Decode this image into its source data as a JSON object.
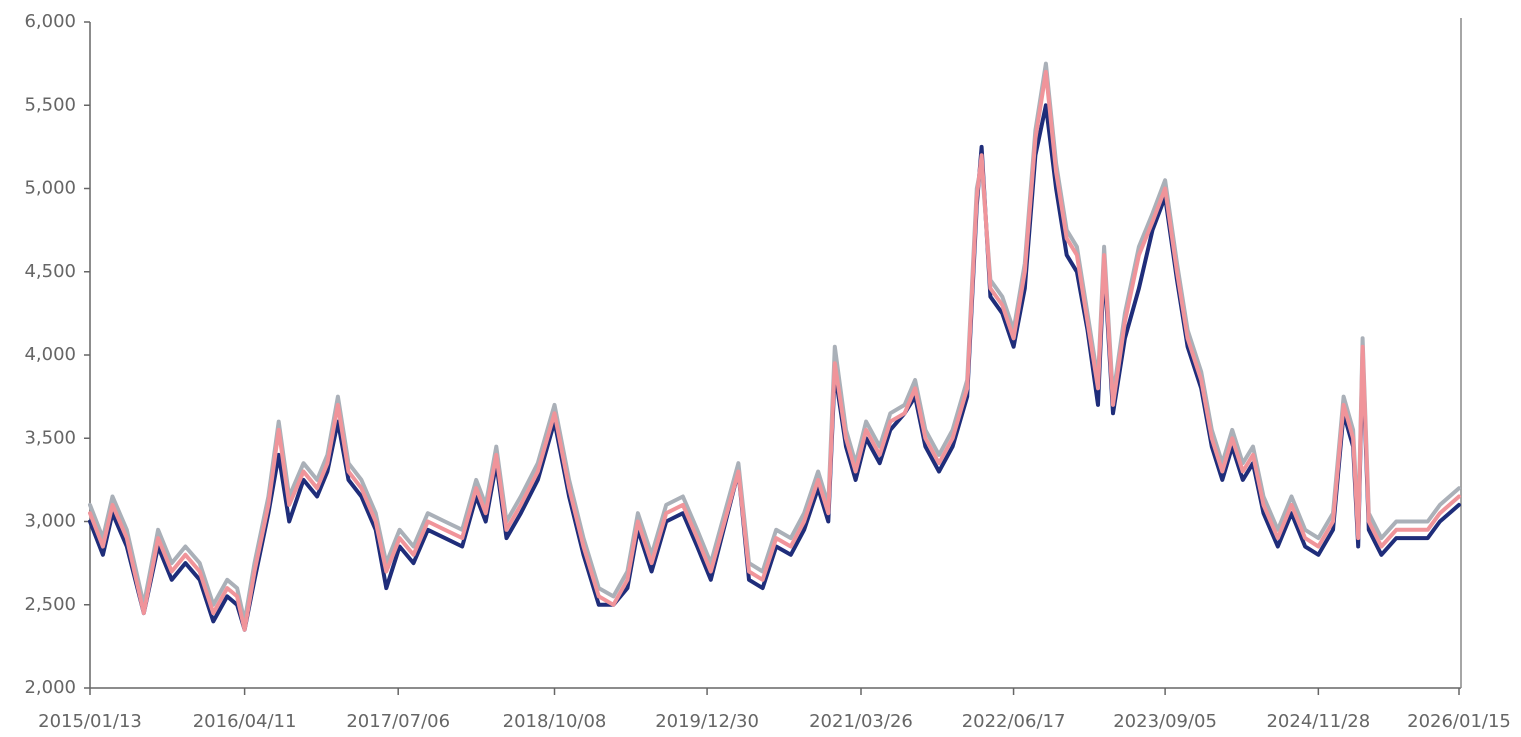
{
  "chart_data": {
    "type": "line",
    "x": [
      "2015/01/13",
      "2015/02/20",
      "2015/03/20",
      "2015/05/01",
      "2015/06/20",
      "2015/08/01",
      "2015/09/10",
      "2015/10/20",
      "2015/12/01",
      "2016/01/10",
      "2016/02/20",
      "2016/03/20",
      "2016/04/11",
      "2016/05/10",
      "2016/06/20",
      "2016/07/20",
      "2016/08/20",
      "2016/10/01",
      "2016/11/10",
      "2016/12/10",
      "2017/01/10",
      "2017/02/10",
      "2017/03/20",
      "2017/05/01",
      "2017/06/01",
      "2017/07/10",
      "2017/08/20",
      "2017/10/01",
      "2017/11/20",
      "2018/01/10",
      "2018/02/20",
      "2018/03/20",
      "2018/04/20",
      "2018/05/20",
      "2018/07/01",
      "2018/08/20",
      "2018/10/08",
      "2018/11/20",
      "2019/01/01",
      "2019/02/15",
      "2019/03/30",
      "2019/05/10",
      "2019/06/10",
      "2019/07/20",
      "2019/09/01",
      "2019/10/20",
      "2019/12/01",
      "2020/01/10",
      "2020/03/31",
      "2020/05/01",
      "2020/06/10",
      "2020/07/20",
      "2020/09/01",
      "2020/10/10",
      "2020/11/20",
      "2020/12/20",
      "2021/01/08",
      "2021/02/10",
      "2021/03/10",
      "2021/04/10",
      "2021/05/20",
      "2021/06/20",
      "2021/08/01",
      "2021/09/01",
      "2021/10/01",
      "2021/11/10",
      "2021/12/20",
      "2022/02/01",
      "2022/03/01",
      "2022/03/15",
      "2022/04/10",
      "2022/05/15",
      "2022/06/17",
      "2022/07/20",
      "2022/08/20",
      "2022/09/20",
      "2022/10/20",
      "2022/11/20",
      "2022/12/20",
      "2023/01/20",
      "2023/02/20",
      "2023/03/10",
      "2023/04/05",
      "2023/05/10",
      "2023/06/20",
      "2023/07/30",
      "2023/09/05",
      "2023/10/10",
      "2023/11/10",
      "2023/12/20",
      "2024/01/20",
      "2024/02/20",
      "2024/03/20",
      "2024/04/20",
      "2024/05/20",
      "2024/06/20",
      "2024/08/01",
      "2024/09/10",
      "2024/10/20",
      "2024/11/28",
      "2025/01/10",
      "2025/02/10",
      "2025/03/10",
      "2025/03/25",
      "2025/04/07",
      "2025/04/25",
      "2025/06/01",
      "2025/07/15",
      "2025/09/01",
      "2025/10/15",
      "2025/11/20",
      "2026/01/15"
    ],
    "series": [
      {
        "color": "#1f2d7a",
        "values": [
          3000,
          2800,
          3050,
          2850,
          2450,
          2850,
          2650,
          2750,
          2650,
          2400,
          2550,
          2500,
          2350,
          2650,
          3050,
          3400,
          3000,
          3250,
          3150,
          3300,
          3600,
          3250,
          3150,
          2950,
          2600,
          2850,
          2750,
          2950,
          2900,
          2850,
          3150,
          3000,
          3350,
          2900,
          3050,
          3250,
          3600,
          3150,
          2800,
          2500,
          2500,
          2600,
          2950,
          2700,
          3000,
          3050,
          2850,
          2650,
          3300,
          2650,
          2600,
          2850,
          2800,
          2950,
          3200,
          3000,
          3900,
          3450,
          3250,
          3500,
          3350,
          3550,
          3650,
          3750,
          3450,
          3300,
          3450,
          3750,
          4900,
          5250,
          4350,
          4250,
          4050,
          4400,
          5200,
          5500,
          5000,
          4600,
          4500,
          4150,
          3700,
          4550,
          3650,
          4100,
          4400,
          4750,
          4950,
          4450,
          4050,
          3800,
          3450,
          3250,
          3450,
          3250,
          3350,
          3050,
          2850,
          3050,
          2850,
          2800,
          2950,
          3650,
          3450,
          2850,
          4000,
          2950,
          2800,
          2900,
          2900,
          2900,
          3000,
          3100
        ]
      },
      {
        "color": "#aab0b8",
        "values": [
          3100,
          2900,
          3150,
          2950,
          2500,
          2950,
          2750,
          2850,
          2750,
          2500,
          2650,
          2600,
          2400,
          2750,
          3150,
          3600,
          3150,
          3350,
          3250,
          3400,
          3750,
          3350,
          3250,
          3050,
          2750,
          2950,
          2850,
          3050,
          3000,
          2950,
          3250,
          3100,
          3450,
          3000,
          3150,
          3350,
          3700,
          3250,
          2900,
          2600,
          2550,
          2700,
          3050,
          2800,
          3100,
          3150,
          2950,
          2750,
          3350,
          2750,
          2700,
          2950,
          2900,
          3050,
          3300,
          3100,
          4050,
          3550,
          3350,
          3600,
          3450,
          3650,
          3700,
          3850,
          3550,
          3400,
          3550,
          3850,
          5000,
          5150,
          4450,
          4350,
          4150,
          4550,
          5350,
          5750,
          5150,
          4750,
          4650,
          4250,
          3850,
          4650,
          3750,
          4250,
          4650,
          4850,
          5050,
          4550,
          4150,
          3900,
          3550,
          3350,
          3550,
          3350,
          3450,
          3150,
          2950,
          3150,
          2950,
          2900,
          3050,
          3750,
          3550,
          2950,
          4100,
          3050,
          2900,
          3000,
          3000,
          3000,
          3100,
          3200
        ]
      },
      {
        "color": "#f0949a",
        "values": [
          3050,
          2850,
          3100,
          2900,
          2450,
          2900,
          2700,
          2800,
          2700,
          2450,
          2600,
          2550,
          2350,
          2700,
          3100,
          3550,
          3100,
          3300,
          3200,
          3350,
          3700,
          3300,
          3200,
          3000,
          2700,
          2900,
          2800,
          3000,
          2950,
          2900,
          3200,
          3050,
          3400,
          2950,
          3100,
          3300,
          3650,
          3200,
          2850,
          2550,
          2500,
          2650,
          3000,
          2750,
          3050,
          3100,
          2900,
          2700,
          3300,
          2700,
          2650,
          2900,
          2850,
          3000,
          3250,
          3050,
          3950,
          3500,
          3300,
          3550,
          3400,
          3600,
          3650,
          3800,
          3500,
          3350,
          3500,
          3800,
          4950,
          5200,
          4400,
          4300,
          4100,
          4500,
          5300,
          5700,
          5100,
          4700,
          4600,
          4200,
          3800,
          4600,
          3700,
          4200,
          4600,
          4800,
          5000,
          4500,
          4100,
          3850,
          3500,
          3300,
          3500,
          3300,
          3400,
          3100,
          2900,
          3100,
          2900,
          2850,
          3000,
          3700,
          3500,
          2900,
          4050,
          3000,
          2850,
          2950,
          2950,
          2950,
          3050,
          3150
        ]
      }
    ],
    "xlim": [
      "2015/01/13",
      "2026/01/15"
    ],
    "xticks": [
      "2015/01/13",
      "2016/04/11",
      "2017/07/06",
      "2018/10/08",
      "2019/12/30",
      "2021/03/26",
      "2022/06/17",
      "2023/09/05",
      "2024/11/28",
      "2026/01/15"
    ],
    "ylim": [
      2000,
      6000
    ],
    "yticks": [
      {
        "value": 2000,
        "label": "2,000"
      },
      {
        "value": 2500,
        "label": "2,500"
      },
      {
        "value": 3000,
        "label": "3,000"
      },
      {
        "value": 3500,
        "label": "3,500"
      },
      {
        "value": 4000,
        "label": "4,000"
      },
      {
        "value": 4500,
        "label": "4,500"
      },
      {
        "value": 5000,
        "label": "5,000"
      },
      {
        "value": 5500,
        "label": "5,500"
      },
      {
        "value": 6000,
        "label": "6,000"
      }
    ],
    "grid": false
  }
}
